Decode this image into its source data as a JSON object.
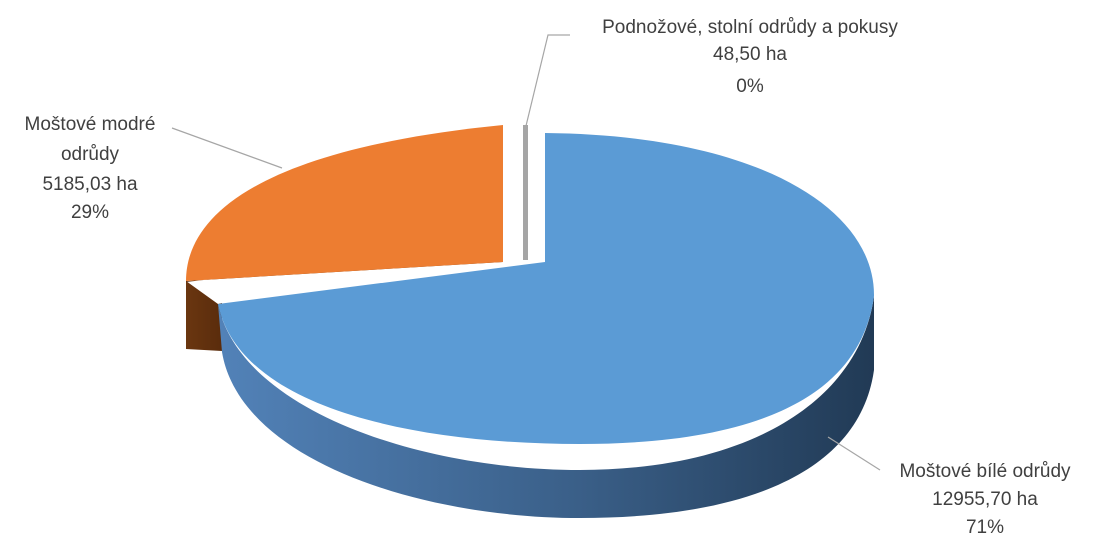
{
  "chart_data": {
    "type": "pie",
    "style": "3d-exploded",
    "legend": "none",
    "slices": [
      {
        "name": "Moštové bílé odrůdy",
        "value": 12955.7,
        "value_label": "12955,70 ha",
        "percent_label": "71%",
        "color": "#5B9BD5"
      },
      {
        "name": "Moštové modré odrůdy",
        "name_lines": [
          "Moštové modré",
          "odrůdy"
        ],
        "value": 5185.03,
        "value_label": "5185,03 ha",
        "percent_label": "29%",
        "color": "#ED7D31"
      },
      {
        "name": "Podnožové, stolní odrůdy a pokusy",
        "value": 48.5,
        "value_label": "48,50 ha",
        "percent_label": "0%",
        "color": "#A5A5A5"
      }
    ]
  }
}
